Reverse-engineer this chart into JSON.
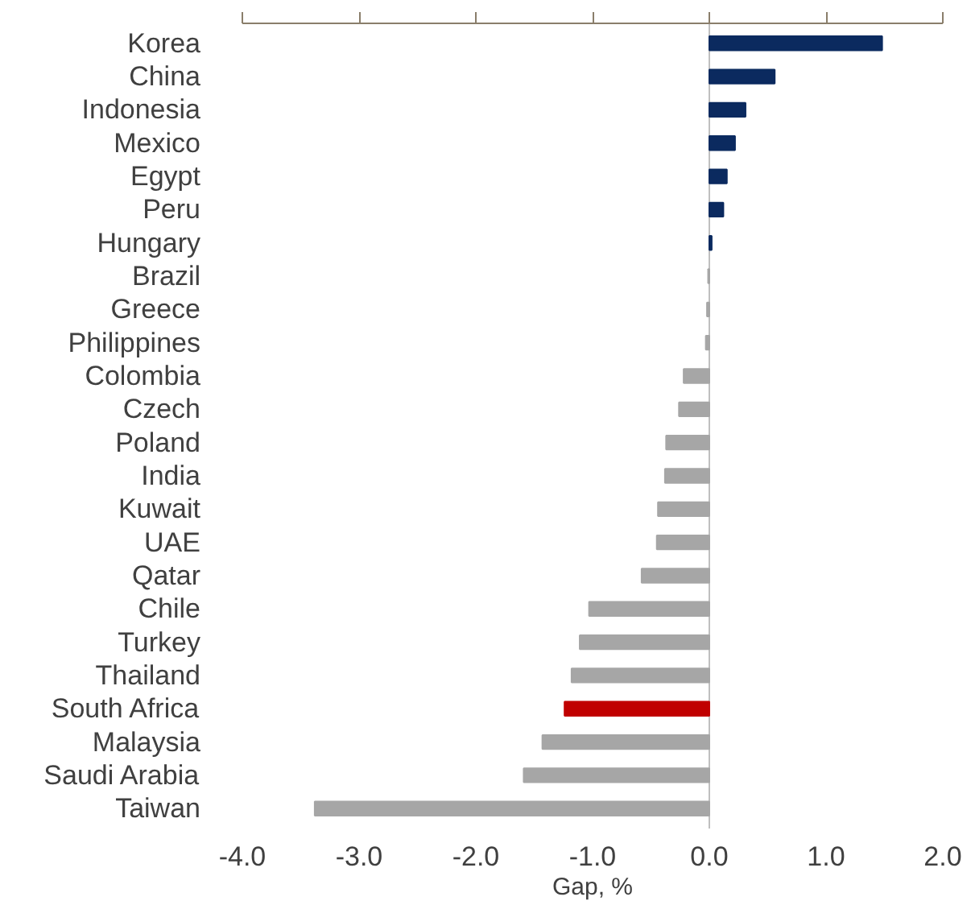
{
  "chart_data": {
    "type": "bar",
    "orientation": "horizontal",
    "xlabel": "Gap, %",
    "categories": [
      "Korea",
      "China",
      "Indonesia",
      "Mexico",
      "Egypt",
      "Peru",
      "Hungary",
      "Brazil",
      "Greece",
      "Philippines",
      "Colombia",
      "Czech",
      "Poland",
      "India",
      "Kuwait",
      "UAE",
      "Qatar",
      "Chile",
      "Turkey",
      "Thailand",
      "South Africa",
      "Malaysia",
      "Saudi Arabia",
      "Taiwan"
    ],
    "values": [
      1.48,
      0.56,
      0.31,
      0.22,
      0.15,
      0.12,
      0.02,
      -0.01,
      -0.02,
      -0.03,
      -0.22,
      -0.26,
      -0.37,
      -0.38,
      -0.44,
      -0.45,
      -0.58,
      -1.03,
      -1.11,
      -1.18,
      -1.24,
      -1.43,
      -1.59,
      -3.38
    ],
    "colors": [
      "#0b2a5f",
      "#0b2a5f",
      "#0b2a5f",
      "#0b2a5f",
      "#0b2a5f",
      "#0b2a5f",
      "#0b2a5f",
      "#a6a6a6",
      "#a6a6a6",
      "#a6a6a6",
      "#a6a6a6",
      "#a6a6a6",
      "#a6a6a6",
      "#a6a6a6",
      "#a6a6a6",
      "#a6a6a6",
      "#a6a6a6",
      "#a6a6a6",
      "#a6a6a6",
      "#a6a6a6",
      "#c00000",
      "#a6a6a6",
      "#a6a6a6",
      "#a6a6a6"
    ],
    "xlim": [
      -4.0,
      2.0
    ],
    "xticks": [
      {
        "value": -4,
        "label": "-4.0"
      },
      {
        "value": -3,
        "label": "-3.0"
      },
      {
        "value": -2,
        "label": "-2.0"
      },
      {
        "value": -1,
        "label": "-1.0"
      },
      {
        "value": 0,
        "label": "0.0"
      },
      {
        "value": 1,
        "label": "1.0"
      },
      {
        "value": 2,
        "label": "2.0"
      }
    ],
    "ref_lines": [
      {
        "axis": "x",
        "value": 0,
        "color": "#bfbfbf"
      }
    ],
    "grid": false
  }
}
